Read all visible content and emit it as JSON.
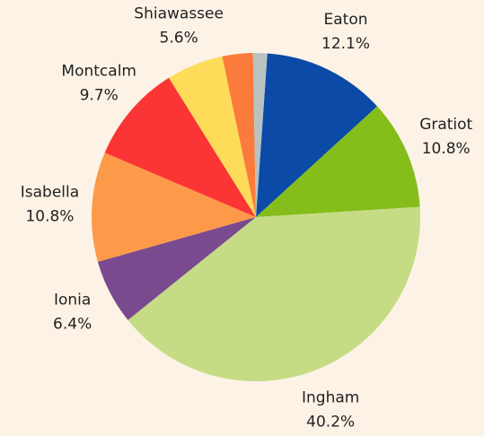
{
  "chart_data": {
    "type": "pie",
    "categories": [
      "Eaton",
      "Gratiot",
      "Ingham",
      "Ionia",
      "Isabella",
      "Montcalm",
      "Shiawassee",
      null,
      null
    ],
    "values": [
      12.1,
      10.8,
      40.2,
      6.4,
      10.8,
      9.7,
      5.6,
      3.0,
      1.4
    ],
    "value_labels": [
      "12.1%",
      "10.8%",
      "40.2%",
      "6.4%",
      "10.8%",
      "9.7%",
      "5.6%",
      null,
      null
    ],
    "colors": [
      "#0b4aa6",
      "#85bd1a",
      "#c5dc85",
      "#7a4a8f",
      "#fc9a4a",
      "#fb3535",
      "#fedc5a",
      "#fa7b3c",
      "#b9c2c0"
    ]
  }
}
